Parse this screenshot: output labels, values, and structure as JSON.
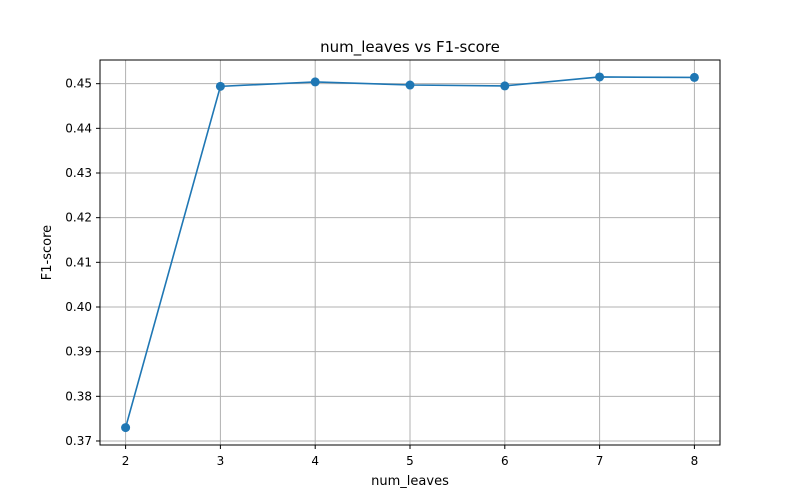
{
  "chart_data": {
    "type": "line",
    "title": "num_leaves vs F1-score",
    "xlabel": "num_leaves",
    "ylabel": "F1-score",
    "x": [
      2,
      3,
      4,
      5,
      6,
      7,
      8
    ],
    "series": [
      {
        "values": [
          0.373,
          0.4494,
          0.4504,
          0.4497,
          0.4495,
          0.4515,
          0.4514
        ],
        "color": "#1f77b4",
        "marker": "circle"
      }
    ],
    "xlim": [
      1.73,
      8.27
    ],
    "ylim": [
      0.3691,
      0.4553
    ],
    "xticks": [
      2,
      3,
      4,
      5,
      6,
      7,
      8
    ],
    "yticks": [
      0.37,
      0.38,
      0.39,
      0.4,
      0.41,
      0.42,
      0.43,
      0.44,
      0.45
    ],
    "ytick_labels": [
      "0.37",
      "0.38",
      "0.39",
      "0.40",
      "0.41",
      "0.42",
      "0.43",
      "0.44",
      "0.45"
    ],
    "grid": true,
    "legend": "none"
  }
}
